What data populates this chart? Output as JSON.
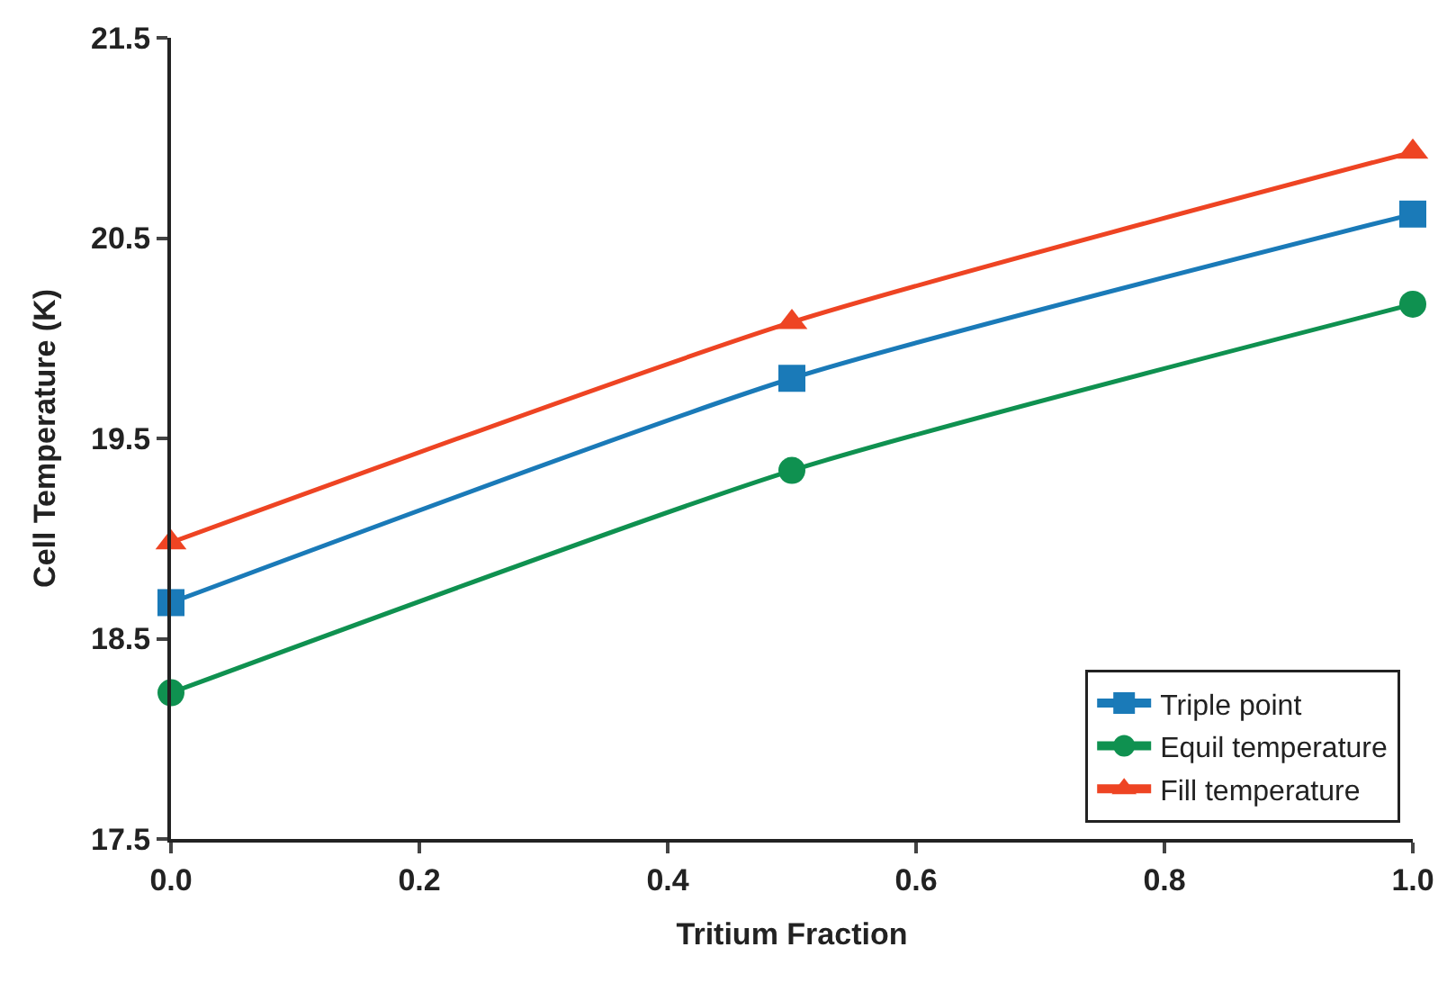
{
  "chart_data": {
    "type": "line",
    "xlabel": "Tritium Fraction",
    "ylabel": "Cell Temperature (K)",
    "x": [
      0,
      0.5,
      1.0
    ],
    "series": [
      {
        "name": "Triple point",
        "color": "#1a7ab8",
        "marker": "square",
        "values": [
          18.68,
          19.8,
          20.62
        ]
      },
      {
        "name": "Equil temperature",
        "color": "#0f9150",
        "marker": "circle",
        "values": [
          18.23,
          19.34,
          20.17
        ]
      },
      {
        "name": "Fill temperature",
        "color": "#ee4423",
        "marker": "triangle",
        "values": [
          18.98,
          20.08,
          20.93
        ]
      }
    ],
    "xlim": [
      0,
      1.0
    ],
    "xticks": [
      {
        "value": 0,
        "label": "0.0"
      },
      {
        "value": 0.2,
        "label": "0.2"
      },
      {
        "value": 0.4,
        "label": "0.4"
      },
      {
        "value": 0.6,
        "label": "0.6"
      },
      {
        "value": 0.8,
        "label": "0.8"
      },
      {
        "value": 1.0,
        "label": "1.0"
      }
    ],
    "ylim": [
      17.5,
      21.5
    ],
    "yticks": [
      17.5,
      18.5,
      19.5,
      20.5,
      21.5
    ],
    "legend": "bottom right",
    "line_style": "solid"
  }
}
